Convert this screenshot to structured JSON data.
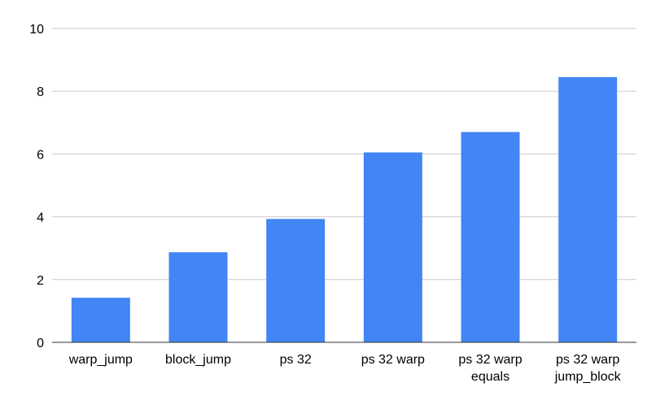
{
  "chart_data": {
    "type": "bar",
    "title": "",
    "xlabel": "",
    "ylabel": "",
    "categories": [
      [
        "warp_jump"
      ],
      [
        "block_jump"
      ],
      [
        "ps 32"
      ],
      [
        "ps 32 warp"
      ],
      [
        "ps 32 warp",
        "equals"
      ],
      [
        "ps 32 warp",
        "jump_block"
      ]
    ],
    "values": [
      1.42,
      2.87,
      3.93,
      6.05,
      6.7,
      8.45
    ],
    "ylim": [
      0,
      10
    ],
    "yticks": [
      0,
      2,
      4,
      6,
      8,
      10
    ],
    "grid": true,
    "legend": "none",
    "colors": {
      "bar": "#4285f4",
      "grid": "#cccccc",
      "axis": "#333333"
    }
  }
}
